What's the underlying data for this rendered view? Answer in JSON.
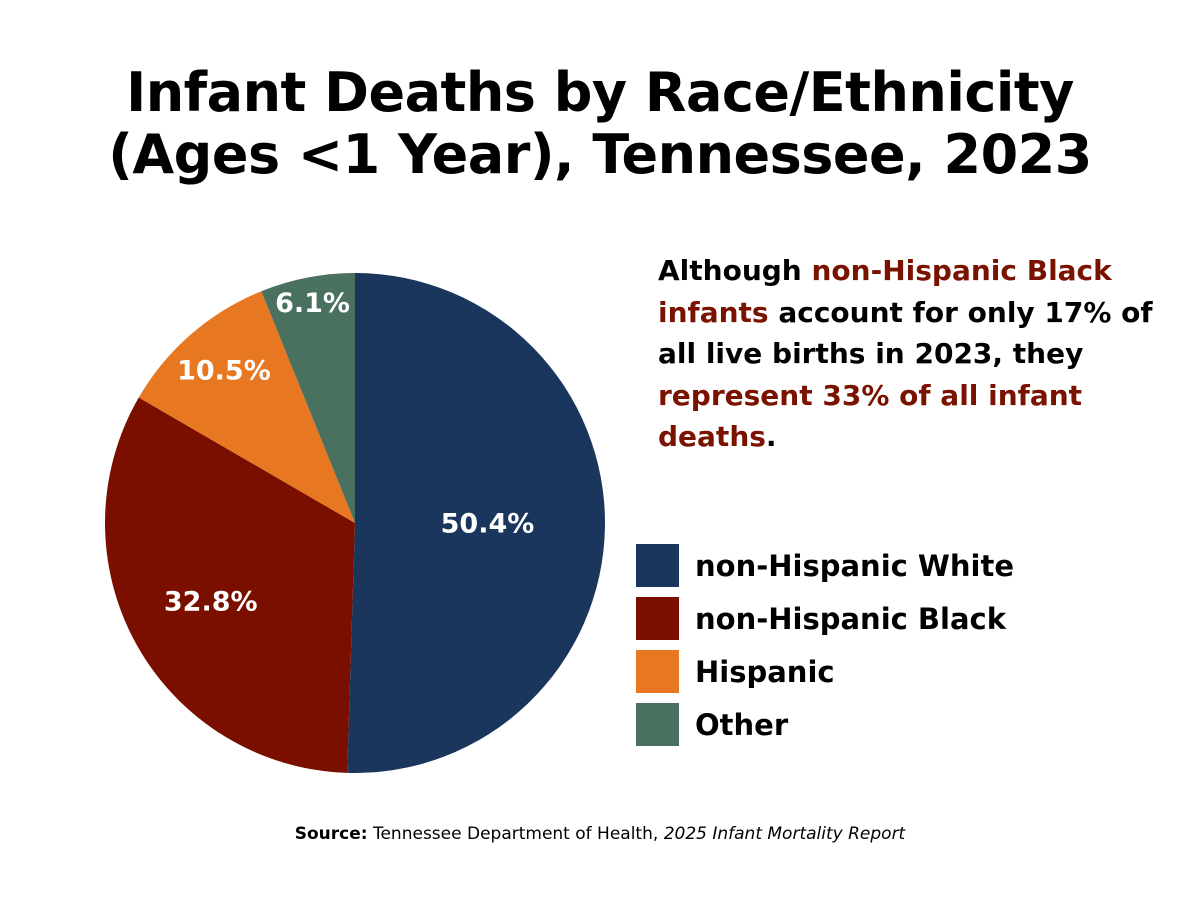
{
  "chart_data": {
    "type": "pie",
    "title_line1": "Infant Deaths by Race/Ethnicity",
    "title_line2": "(Ages <1 Year), Tennessee, 2023",
    "slices": [
      {
        "name": "non-Hispanic White",
        "value": 50.4,
        "label": "50.4%",
        "color": "#1b365d"
      },
      {
        "name": "non-Hispanic Black",
        "value": 32.8,
        "label": "32.8%",
        "color": "#7a0f00"
      },
      {
        "name": "Hispanic",
        "value": 10.5,
        "label": "10.5%",
        "color": "#e87722"
      },
      {
        "name": "Other",
        "value": 6.1,
        "label": "6.1%",
        "color": "#4a7060"
      }
    ],
    "start_angle": "12 o'clock",
    "direction": "clockwise",
    "legend_position": "right"
  },
  "note": {
    "p1": "Although ",
    "h1": "non-Hispanic Black infants",
    "p2": " account for only 17% of all live births in 2023, they ",
    "h2": "represent 33% of all infant deaths",
    "p3": ".",
    "highlight_color": "#7a1200"
  },
  "source": {
    "label": "Source:",
    "text": " Tennessee Department of Health, ",
    "report": "2025 Infant Mortality Report"
  }
}
